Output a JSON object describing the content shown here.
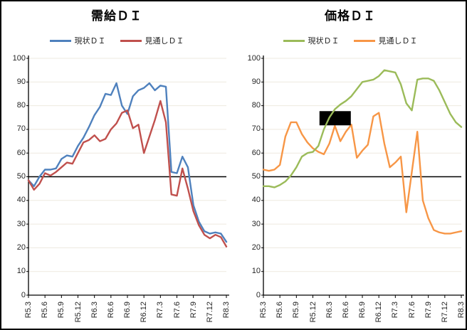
{
  "style": {
    "background": "#FFFFFF",
    "border_color": "#000000",
    "grid_color": "#EDE9DF",
    "axis_color": "#000000",
    "reference_line_color": "#000000",
    "label_color": "#262626",
    "title_color": "#000000"
  },
  "chart_data": [
    {
      "type": "line",
      "title": "需給ＤＩ",
      "ylim": [
        0,
        100
      ],
      "y_step": 10,
      "reference_line": 50,
      "grid": true,
      "legend_position": "top",
      "y_tick_labels": [
        "100",
        "90",
        "80",
        "70",
        "60",
        "50",
        "40",
        "30",
        "20",
        "10",
        "0"
      ],
      "x_tick_labels": [
        "R5.3",
        "R5.6",
        "R5.9",
        "R5.12",
        "R6.3",
        "R6.6",
        "R6.9",
        "R6.12",
        "R7.3",
        "R7.6",
        "R7.9",
        "R7.12",
        "R8.3"
      ],
      "points_per_label": 3,
      "n_points": 37,
      "draw_order": [
        0,
        1
      ],
      "series": [
        {
          "name": "現状ＤＩ",
          "color": "#4F81BD",
          "values": [
            48.5,
            46,
            50,
            53,
            53,
            53.5,
            57.5,
            59,
            58.5,
            63,
            66.5,
            71,
            76,
            79.5,
            85,
            84.5,
            89.5,
            80,
            76.5,
            84,
            86.5,
            87.5,
            89.5,
            86.5,
            88.5,
            88,
            52,
            51.5,
            58.5,
            54,
            38,
            31,
            27,
            26,
            26.5,
            26,
            22.5
          ]
        },
        {
          "name": "見通しＤＩ",
          "color": "#C0504D",
          "values": [
            48.5,
            44.5,
            47,
            51.5,
            50.5,
            52,
            54,
            56,
            55.5,
            60,
            64.5,
            65.5,
            67.5,
            65,
            66,
            70,
            72.5,
            77,
            78,
            70.5,
            72,
            60,
            67,
            74,
            82,
            73,
            42.5,
            42,
            53.5,
            45,
            35.5,
            29.5,
            25.5,
            24,
            25.5,
            24.5,
            20.5
          ]
        }
      ],
      "annotations": []
    },
    {
      "type": "line",
      "title": "価格ＤＩ",
      "ylim": [
        0,
        100
      ],
      "y_step": 10,
      "reference_line": 50,
      "grid": true,
      "legend_position": "top",
      "y_tick_labels": [
        "100",
        "90",
        "80",
        "70",
        "60",
        "50",
        "40",
        "30",
        "20",
        "10",
        "0"
      ],
      "x_tick_labels": [
        "R5.3",
        "R5.6",
        "R5.9",
        "R5.12",
        "R6.3",
        "R6.6",
        "R6.9",
        "R6.12",
        "R7.3",
        "R7.6",
        "R7.9",
        "R7.12",
        "R8.3"
      ],
      "points_per_label": 3,
      "n_points": 37,
      "draw_order": [
        1,
        0
      ],
      "series": [
        {
          "name": "現状ＤＩ",
          "color": "#9BBB59",
          "values": [
            46,
            46,
            45.5,
            46.5,
            48,
            50.5,
            54,
            58.5,
            60,
            60.5,
            63,
            70,
            75,
            78.5,
            80.5,
            82,
            84,
            87,
            90,
            90.5,
            91,
            92.5,
            95,
            94.5,
            94,
            89,
            81,
            78,
            91,
            91.5,
            91.5,
            90.5,
            86.5,
            81.5,
            76.5,
            73,
            71
          ]
        },
        {
          "name": "見通しＤＩ",
          "color": "#F79646",
          "values": [
            53,
            52.5,
            53,
            55,
            67,
            73,
            73,
            68,
            64.5,
            62,
            60.5,
            59.5,
            64,
            71.5,
            65,
            69,
            72,
            58,
            61,
            63.5,
            75.5,
            77,
            64,
            54,
            56,
            58.5,
            35,
            52,
            69,
            40,
            32.5,
            27.5,
            26.5,
            26,
            26,
            26.5,
            27
          ]
        }
      ],
      "annotations": [
        {
          "type": "redaction-box",
          "fill": "#000000",
          "x_index_start": 10.2,
          "x_index_end": 15.9,
          "y_value_bottom": 71.7,
          "y_value_top": 77.7
        }
      ]
    }
  ]
}
